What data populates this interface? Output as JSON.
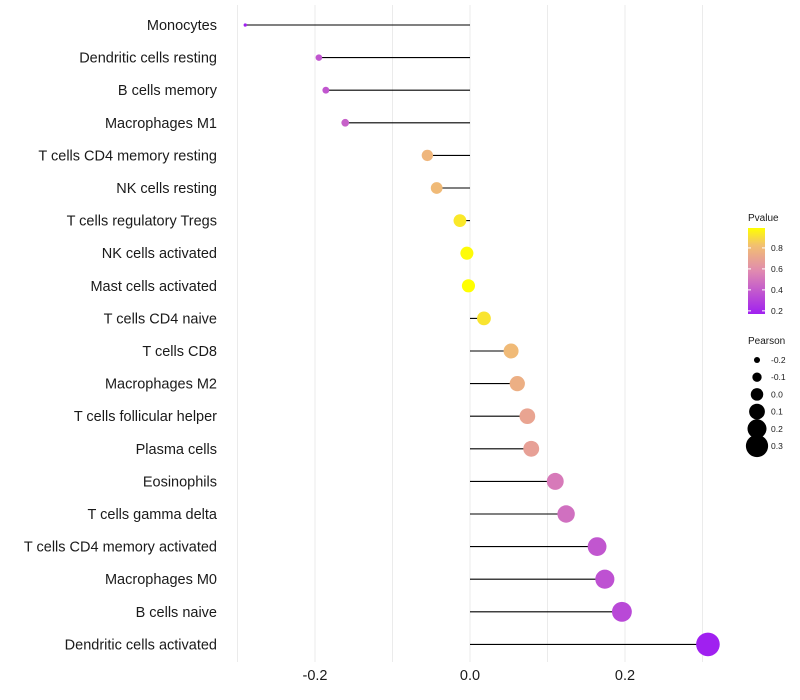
{
  "chart_data": {
    "type": "lollipop",
    "title": "",
    "xlabel": "",
    "ylabel": "",
    "xlim": [
      -0.31,
      0.32
    ],
    "x_ticks": [
      -0.2,
      0.0,
      0.2
    ],
    "x_tick_labels": [
      "-0.2",
      "0.0",
      "0.2"
    ],
    "x_minor_gridlines": [
      -0.3,
      -0.1,
      0.1,
      0.3
    ],
    "grid": true,
    "categories": [
      "Monocytes",
      "Dendritic cells resting",
      "B cells memory",
      "Macrophages M1",
      "T cells CD4 memory resting",
      "NK cells resting",
      "T cells regulatory  Tregs ",
      "NK cells activated",
      "Mast cells activated",
      "T cells CD4 naive",
      "T cells CD8",
      "Macrophages M2",
      "T cells follicular helper",
      "Plasma cells",
      "Eosinophils",
      "T cells gamma delta",
      "T cells CD4 memory activated",
      "Macrophages M0",
      "B cells naive",
      "Dendritic cells activated"
    ],
    "pearson": [
      -0.29,
      -0.195,
      -0.186,
      -0.161,
      -0.055,
      -0.043,
      -0.013,
      -0.004,
      -0.002,
      0.018,
      0.053,
      0.061,
      0.074,
      0.079,
      0.11,
      0.124,
      0.164,
      0.174,
      0.196,
      0.307
    ],
    "pvalue": [
      0.17,
      0.38,
      0.38,
      0.42,
      0.78,
      0.8,
      0.93,
      0.98,
      0.99,
      0.92,
      0.8,
      0.75,
      0.7,
      0.68,
      0.52,
      0.48,
      0.38,
      0.36,
      0.33,
      0.17
    ],
    "legend": {
      "color": {
        "title": "Pvalue",
        "breaks": [
          0.2,
          0.4,
          0.6,
          0.8
        ],
        "labels": [
          "0.2",
          "0.4",
          "0.6",
          "0.8"
        ],
        "range": [
          0.17,
          0.99
        ],
        "low_color": "#A020F0",
        "high_color": "#FFFF00",
        "position": "right"
      },
      "size": {
        "title": "Pearson",
        "breaks": [
          -0.2,
          -0.1,
          0.0,
          0.1,
          0.2,
          0.3
        ],
        "labels": [
          "-0.2",
          "-0.1",
          "0.0",
          "0.1",
          "0.2",
          "0.3"
        ],
        "position": "right"
      }
    },
    "segment_color": "#000000",
    "gridline_color": "#EBEBEB"
  }
}
